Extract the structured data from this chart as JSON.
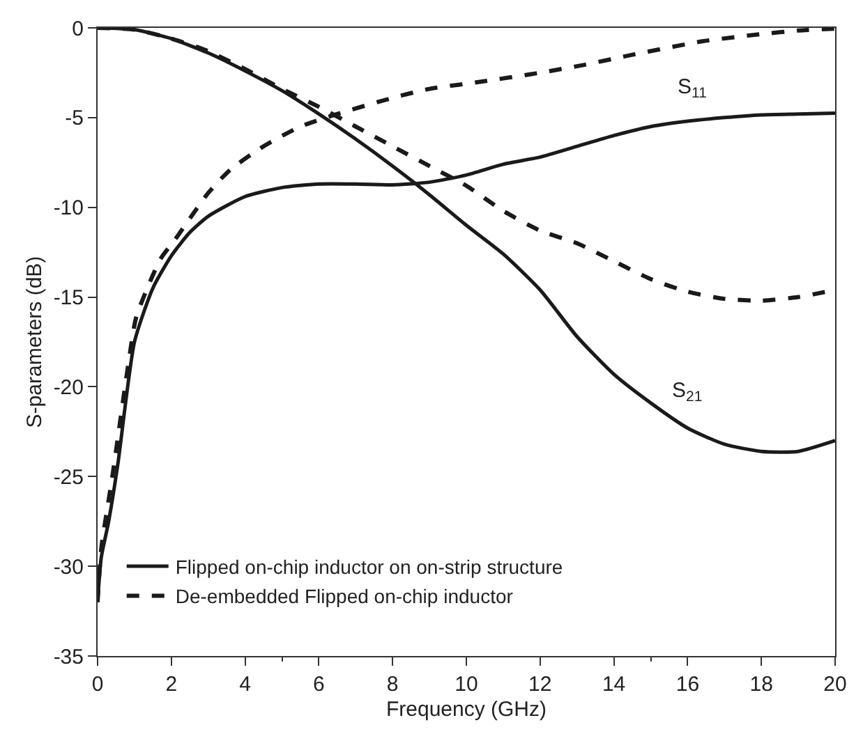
{
  "chart_data": {
    "type": "line",
    "xlabel": "Frequency (GHz)",
    "ylabel": "S-parameters (dB)",
    "xlim": [
      0,
      20
    ],
    "xticks": [
      0,
      2,
      4,
      6,
      8,
      10,
      12,
      14,
      16,
      18,
      20
    ],
    "ylim": [
      -35,
      0
    ],
    "yticks": [
      -35,
      -30,
      -25,
      -20,
      -15,
      -10,
      -5,
      0
    ],
    "legend": "bottom left",
    "marker": "none",
    "series": [
      {
        "name": "Flipped on-chip inductor on on-strip structure",
        "color": "#1a1a1a",
        "line_style": "solid",
        "x": [
          0,
          0.1,
          0.3,
          0.55,
          1,
          1.5,
          2,
          2.5,
          3,
          4,
          5,
          6,
          7,
          8,
          9,
          10,
          11,
          12,
          13,
          14,
          15,
          16,
          17,
          18,
          19,
          20
        ],
        "values": [
          -32,
          -29.5,
          -27.5,
          -24.3,
          -17.5,
          -14.5,
          -12.7,
          -11.4,
          -10.5,
          -9.4,
          -8.9,
          -8.7,
          -8.7,
          -8.75,
          -8.6,
          -8.2,
          -7.6,
          -7.2,
          -6.6,
          -6.0,
          -5.5,
          -5.2,
          -5.0,
          -4.85,
          -4.8,
          -4.75
        ]
      },
      {
        "name": "De-embedded Flipped on-chip inductor",
        "color": "#1a1a1a",
        "line_style": "dashed",
        "x": [
          0,
          0.1,
          0.4,
          0.85,
          1.05,
          1.7,
          2.1,
          3,
          3.6,
          4.5,
          5.5,
          6.5,
          8,
          9,
          10.4,
          12,
          13.2,
          14.5,
          16.4,
          18,
          19,
          20
        ],
        "values": [
          -32,
          -29,
          -25,
          -18.5,
          -16.1,
          -12.9,
          -11.8,
          -9.2,
          -7.9,
          -6.6,
          -5.5,
          -4.8,
          -3.9,
          -3.4,
          -3.0,
          -2.5,
          -2.06,
          -1.5,
          -0.75,
          -0.35,
          -0.15,
          -0.05
        ]
      },
      {
        "color": "#1a1a1a",
        "line_style": "solid",
        "x": [
          0,
          1,
          2,
          3,
          4,
          5,
          6,
          7,
          8,
          9,
          10,
          11,
          12,
          13,
          14,
          15,
          16,
          17,
          18,
          19,
          20
        ],
        "values": [
          0,
          -0.1,
          -0.6,
          -1.4,
          -2.4,
          -3.5,
          -4.8,
          -6.2,
          -7.7,
          -9.3,
          -11.0,
          -12.6,
          -14.6,
          -17.2,
          -19.3,
          -20.9,
          -22.3,
          -23.2,
          -23.6,
          -23.6,
          -23.0
        ]
      },
      {
        "color": "#1a1a1a",
        "line_style": "dashed",
        "x": [
          0,
          1,
          2,
          3,
          4,
          5,
          6,
          7,
          8,
          9,
          10,
          11,
          12,
          13,
          14,
          15,
          16,
          17,
          18,
          19,
          20
        ],
        "values": [
          0,
          -0.1,
          -0.6,
          -1.3,
          -2.3,
          -3.4,
          -4.4,
          -5.5,
          -6.6,
          -7.7,
          -8.8,
          -10.2,
          -11.3,
          -12.0,
          -13.0,
          -14.0,
          -14.7,
          -15.1,
          -15.2,
          -15.0,
          -14.6
        ]
      }
    ],
    "annotations": [
      "S$_{11}$",
      "S$_{21}$"
    ]
  }
}
